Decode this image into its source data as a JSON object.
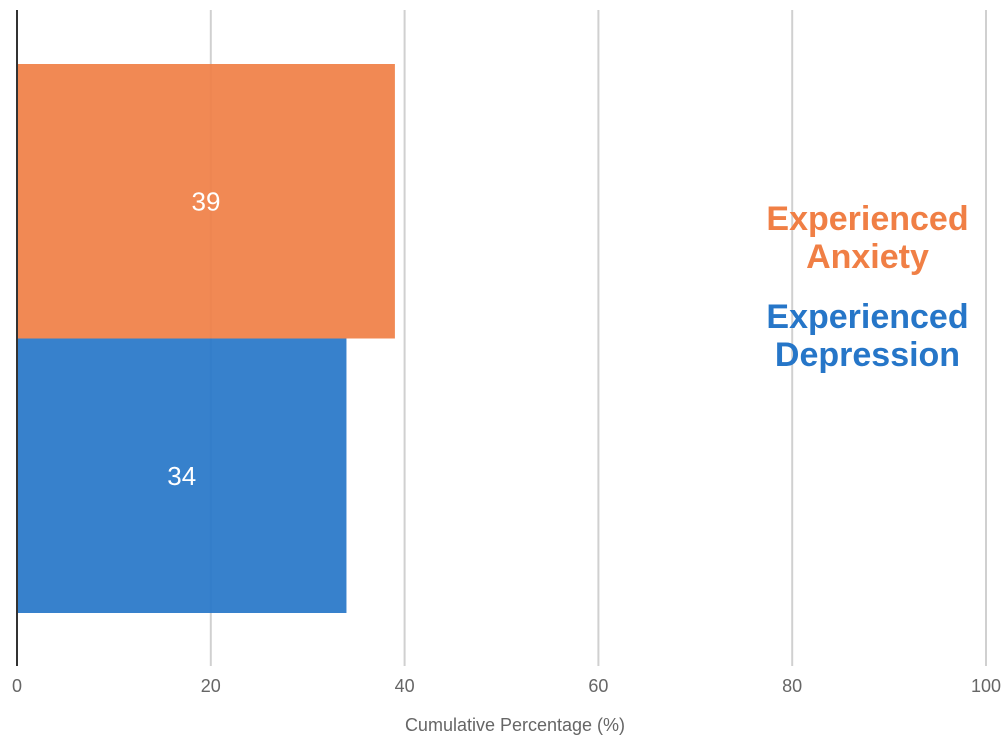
{
  "chart_data": {
    "type": "bar",
    "orientation": "horizontal",
    "categories": [
      "Experienced Anxiety",
      "Experienced Depression"
    ],
    "values": [
      39,
      34
    ],
    "colors": [
      "#f07f45",
      "#2676c8"
    ],
    "xlabel": "Cumulative Percentage (%)",
    "xlim": [
      0,
      100
    ],
    "xticks": [
      0,
      20,
      40,
      60,
      80,
      100
    ],
    "grid": true,
    "legend_position": "right",
    "legend": [
      {
        "label": "Experienced\nAnxiety",
        "color": "#f07f45"
      },
      {
        "label": "Experienced\nDepression",
        "color": "#2676c8"
      }
    ]
  }
}
